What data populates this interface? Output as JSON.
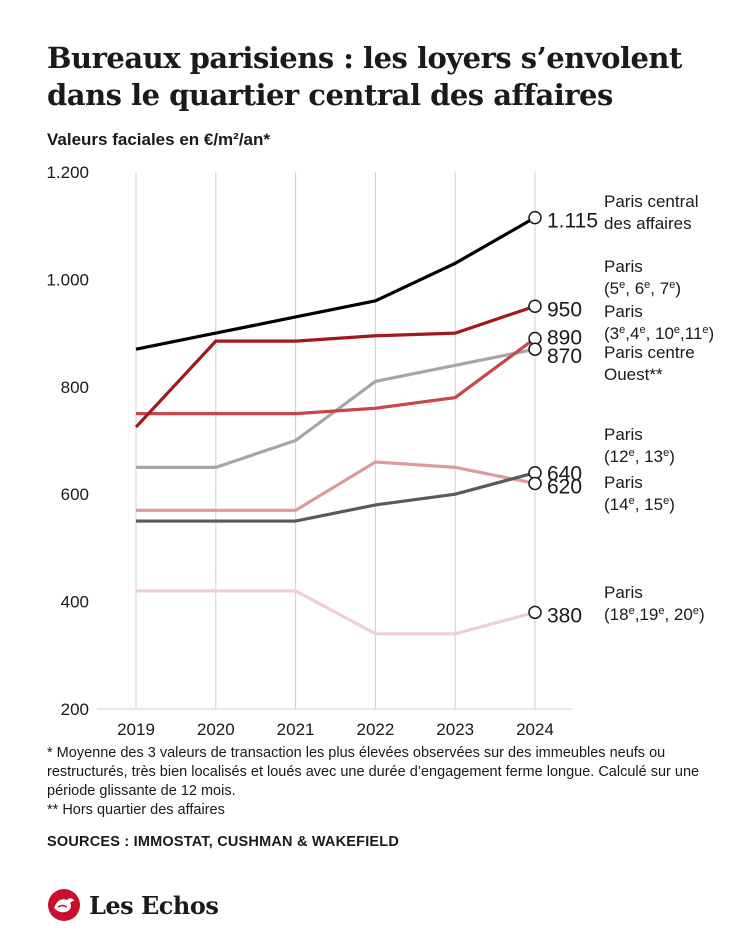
{
  "header": {
    "title": "Bureaux parisiens : les loyers s’envolent dans le quartier central des affaires",
    "subtitle": "Valeurs faciales en €/m²/an*"
  },
  "chart_data": {
    "type": "line",
    "x": [
      2019,
      2020,
      2021,
      2022,
      2023,
      2024
    ],
    "ylim": [
      200,
      1200
    ],
    "yticks": [
      200,
      400,
      600,
      800,
      1000,
      1200
    ],
    "ytick_labels": [
      "200",
      "400",
      "600",
      "800",
      "1.000",
      "1.200"
    ],
    "grid": "vertical",
    "series": [
      {
        "name": "Paris central des affaires",
        "color": "#000000",
        "values": [
          870,
          900,
          930,
          960,
          1030,
          1115
        ],
        "end_label": "1.115"
      },
      {
        "name": "Paris (5e, 6e, 7e)",
        "color": "#a3181d",
        "values": [
          725,
          885,
          885,
          895,
          900,
          950
        ],
        "end_label": "950"
      },
      {
        "name": "Paris (3e,4e, 10e,11e)",
        "color": "#c8464c",
        "values": [
          750,
          750,
          750,
          760,
          780,
          890
        ],
        "end_label": "890"
      },
      {
        "name": "Paris centre Ouest**",
        "color": "#a6a6a6",
        "values": [
          650,
          650,
          700,
          810,
          840,
          870
        ],
        "end_label": "870"
      },
      {
        "name": "Paris (12e, 13e)",
        "color": "#5a5a5a",
        "values": [
          550,
          550,
          550,
          580,
          600,
          640
        ],
        "end_label": "640"
      },
      {
        "name": "Paris (14e, 15e)",
        "color": "#dc9a9c",
        "values": [
          570,
          570,
          570,
          660,
          650,
          620
        ],
        "end_label": "620"
      },
      {
        "name": "Paris (18e,19e, 20e)",
        "color": "#f0cfd0",
        "values": [
          420,
          420,
          420,
          340,
          340,
          380
        ],
        "end_label": "380"
      }
    ],
    "legend_labels": [
      {
        "lines": [
          "Paris central",
          "des affaires"
        ],
        "sup": []
      },
      {
        "lines": [
          "Paris",
          "(5e, 6e, 7e)"
        ],
        "sup": [
          [
            1,
            2,
            3
          ],
          [
            1,
            6,
            7
          ],
          [
            1,
            10,
            11
          ]
        ]
      },
      {
        "lines": [
          "Paris",
          "(3e,4e, 10e,11e)"
        ],
        "sup": []
      },
      {
        "lines": [
          "Paris centre",
          "Ouest**"
        ],
        "sup": []
      },
      {
        "lines": [
          "Paris",
          "(12e, 13e)"
        ],
        "sup": []
      },
      {
        "lines": [
          "Paris",
          "(14e, 15e)"
        ],
        "sup": []
      },
      {
        "lines": [
          "Paris",
          "(18e,19e, 20e)"
        ],
        "sup": []
      }
    ]
  },
  "footnotes": {
    "note1": "* Moyenne des 3 valeurs de transaction les plus élevées observées sur des immeubles neufs ou restructurés, très bien localisés et loués avec une durée d’engagement ferme longue. Calculé sur une période glissante de 12 mois.",
    "note2": "** Hors quartier des affaires"
  },
  "sources": "SOURCES :  IMMOSTAT, CUSHMAN & WAKEFIELD",
  "brand": {
    "name": "Les Echos",
    "logo_icon": "les-echos-rooster-icon",
    "logo_color": "#c8102e"
  }
}
